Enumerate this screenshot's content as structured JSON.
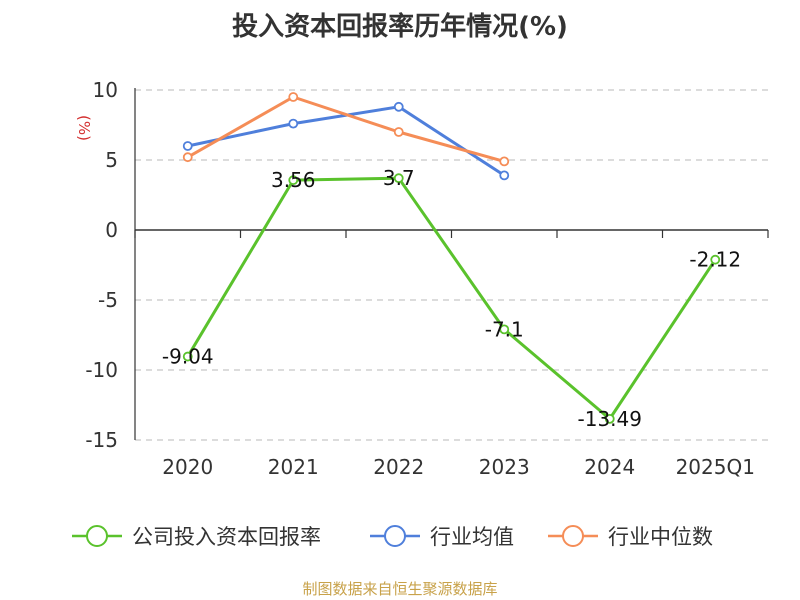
{
  "chart_data": {
    "type": "line",
    "title": "投入资本回报率历年情况(%)",
    "ylabel": "(%)",
    "categories": [
      "2020",
      "2021",
      "2022",
      "2023",
      "2024",
      "2025Q1"
    ],
    "ylim": [
      -15,
      10
    ],
    "yticks": [
      10,
      5,
      0,
      -5,
      -10,
      -15
    ],
    "grid": true,
    "legend_position": "bottom",
    "series": [
      {
        "name": "公司投入资本回报率",
        "color": "#5ac22c",
        "values": [
          -9.04,
          3.56,
          3.7,
          -7.1,
          -13.49,
          -2.12
        ],
        "labels": [
          "-9.04",
          "3.56",
          "3.7",
          "-7.1",
          "-13.49",
          "-2.12"
        ]
      },
      {
        "name": "行业均值",
        "color": "#4f7fdb",
        "values": [
          6.0,
          7.6,
          8.8,
          3.9,
          null,
          null
        ]
      },
      {
        "name": "行业中位数",
        "color": "#f58d57",
        "values": [
          5.2,
          9.5,
          7.0,
          4.9,
          null,
          null
        ]
      }
    ]
  },
  "footer": {
    "source": "制图数据来自恒生聚源数据库"
  }
}
